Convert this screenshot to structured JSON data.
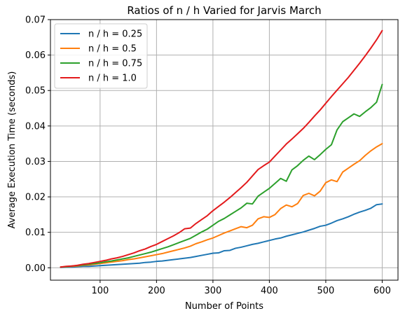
{
  "chart_data": {
    "type": "line",
    "title": "Ratios of n / h Varied for Jarvis March",
    "xlabel": "Number of Points",
    "ylabel": "Average Execution Time (seconds)",
    "xlim": [
      12,
      628
    ],
    "ylim": [
      -0.0035,
      0.07
    ],
    "xticks": [
      100,
      200,
      300,
      400,
      500,
      600
    ],
    "yticks": [
      0.0,
      0.01,
      0.02,
      0.03,
      0.04,
      0.05,
      0.06,
      0.07
    ],
    "xtick_labels": [
      "100",
      "200",
      "300",
      "400",
      "500",
      "600"
    ],
    "ytick_labels": [
      "0.00",
      "0.01",
      "0.02",
      "0.03",
      "0.04",
      "0.05",
      "0.06",
      "0.07"
    ],
    "grid": true,
    "legend_position": "upper-left",
    "x": [
      30,
      40,
      50,
      60,
      70,
      80,
      90,
      100,
      110,
      120,
      130,
      140,
      150,
      160,
      170,
      180,
      190,
      200,
      210,
      220,
      230,
      240,
      250,
      260,
      270,
      280,
      290,
      300,
      310,
      320,
      330,
      340,
      350,
      360,
      370,
      380,
      390,
      400,
      410,
      420,
      430,
      440,
      450,
      460,
      470,
      480,
      490,
      500,
      510,
      520,
      530,
      540,
      550,
      560,
      570,
      580,
      590,
      600
    ],
    "series": [
      {
        "name": "n / h = 0.25",
        "color": "#1f77b4",
        "values": [
          0.0001,
          0.0002,
          0.0002,
          0.0003,
          0.0004,
          0.0004,
          0.0005,
          0.0006,
          0.0007,
          0.0008,
          0.0009,
          0.001,
          0.0011,
          0.0012,
          0.0013,
          0.0015,
          0.0016,
          0.0018,
          0.0019,
          0.0021,
          0.0023,
          0.0025,
          0.0027,
          0.0029,
          0.0032,
          0.0035,
          0.0038,
          0.0041,
          0.0042,
          0.0048,
          0.0049,
          0.0055,
          0.0058,
          0.0062,
          0.0066,
          0.0069,
          0.0073,
          0.0077,
          0.0081,
          0.0084,
          0.0089,
          0.0093,
          0.0097,
          0.0101,
          0.0106,
          0.0111,
          0.0117,
          0.012,
          0.0126,
          0.0133,
          0.0138,
          0.0144,
          0.0151,
          0.0157,
          0.0162,
          0.0168,
          0.0178,
          0.018
        ]
      },
      {
        "name": "n / h = 0.5",
        "color": "#ff7f0e",
        "values": [
          0.0002,
          0.0003,
          0.0004,
          0.0005,
          0.0007,
          0.0008,
          0.001,
          0.0012,
          0.0014,
          0.0016,
          0.0018,
          0.002,
          0.0023,
          0.0025,
          0.0028,
          0.0031,
          0.0034,
          0.0037,
          0.004,
          0.0044,
          0.0048,
          0.0052,
          0.0056,
          0.0061,
          0.0068,
          0.0073,
          0.0079,
          0.0084,
          0.0091,
          0.0098,
          0.0104,
          0.011,
          0.0116,
          0.0113,
          0.012,
          0.0138,
          0.0144,
          0.0142,
          0.015,
          0.0167,
          0.0177,
          0.0172,
          0.0181,
          0.0204,
          0.021,
          0.0203,
          0.0216,
          0.024,
          0.0248,
          0.0243,
          0.027,
          0.0281,
          0.0292,
          0.0302,
          0.0317,
          0.033,
          0.0341,
          0.035
        ]
      },
      {
        "name": "n / h = 0.75",
        "color": "#2ca02c",
        "values": [
          0.0002,
          0.0003,
          0.0005,
          0.0006,
          0.0008,
          0.001,
          0.0012,
          0.0014,
          0.0017,
          0.0019,
          0.0022,
          0.0025,
          0.0028,
          0.0032,
          0.0036,
          0.004,
          0.0044,
          0.0049,
          0.0054,
          0.0059,
          0.0065,
          0.0071,
          0.0077,
          0.0083,
          0.0092,
          0.0101,
          0.0109,
          0.012,
          0.0131,
          0.0139,
          0.0149,
          0.0159,
          0.0169,
          0.0182,
          0.018,
          0.0202,
          0.0213,
          0.0224,
          0.0238,
          0.0252,
          0.0244,
          0.0276,
          0.0288,
          0.0303,
          0.0315,
          0.0305,
          0.0319,
          0.0334,
          0.0347,
          0.0389,
          0.0412,
          0.0423,
          0.0434,
          0.0427,
          0.044,
          0.0452,
          0.0467,
          0.0517
        ]
      },
      {
        "name": "n / h = 1.0",
        "color": "#e31a1c",
        "values": [
          0.0002,
          0.0004,
          0.0005,
          0.0007,
          0.001,
          0.0012,
          0.0015,
          0.0018,
          0.0021,
          0.0025,
          0.0028,
          0.0032,
          0.0037,
          0.0042,
          0.0048,
          0.0053,
          0.006,
          0.0066,
          0.0074,
          0.0082,
          0.009,
          0.0099,
          0.011,
          0.0112,
          0.0125,
          0.0136,
          0.0147,
          0.0161,
          0.0173,
          0.0185,
          0.0198,
          0.0212,
          0.0226,
          0.0241,
          0.0259,
          0.0277,
          0.0288,
          0.0298,
          0.0315,
          0.0332,
          0.0349,
          0.0363,
          0.0378,
          0.0393,
          0.041,
          0.0428,
          0.0445,
          0.0464,
          0.0483,
          0.0501,
          0.0519,
          0.0537,
          0.0557,
          0.0577,
          0.0598,
          0.062,
          0.0643,
          0.0669
        ]
      }
    ]
  }
}
